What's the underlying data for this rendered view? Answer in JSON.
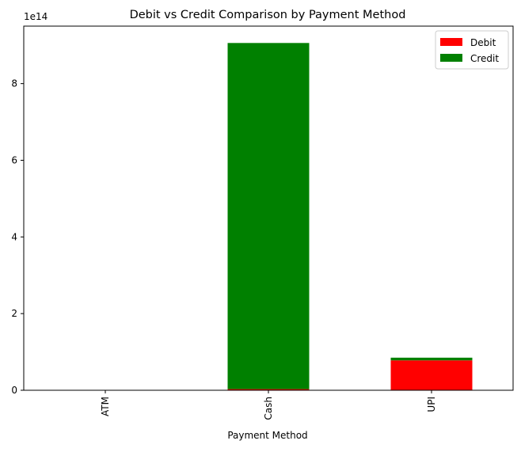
{
  "chart_data": {
    "type": "bar",
    "stacked": true,
    "title": "Debit vs Credit Comparison by Payment Method",
    "xlabel": "Payment Method",
    "ylabel": "",
    "scale_label": "1e14",
    "categories": [
      "ATM",
      "Cash",
      "UPI"
    ],
    "series": [
      {
        "name": "Debit",
        "color": "#ff0000",
        "values": [
          0,
          0.03,
          0.78
        ]
      },
      {
        "name": "Credit",
        "color": "#008000",
        "values": [
          0,
          9.03,
          0.07
        ]
      }
    ],
    "ylim": [
      0,
      9.5
    ],
    "yticks": [
      0,
      2,
      4,
      6,
      8
    ],
    "legend_position": "top-right",
    "grid": false
  }
}
